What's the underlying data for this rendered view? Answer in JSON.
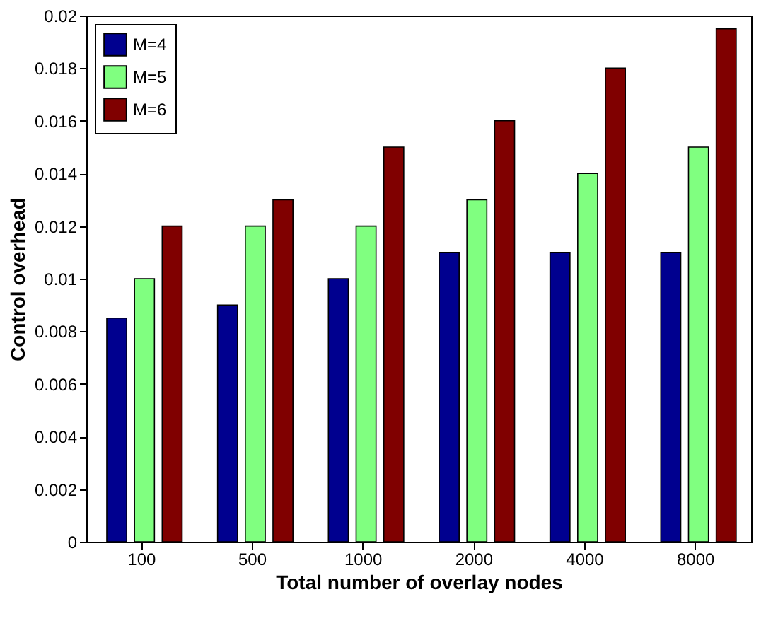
{
  "chart_data": {
    "type": "bar",
    "xlabel": "Total number of overlay nodes",
    "ylabel": "Control overhead",
    "categories": [
      "100",
      "500",
      "1000",
      "2000",
      "4000",
      "8000"
    ],
    "series": [
      {
        "name": "M=4",
        "color": "#00008f",
        "values": [
          0.0085,
          0.009,
          0.01,
          0.011,
          0.011,
          0.011
        ]
      },
      {
        "name": "M=5",
        "color": "#80ff80",
        "values": [
          0.01,
          0.012,
          0.012,
          0.013,
          0.014,
          0.015
        ]
      },
      {
        "name": "M=6",
        "color": "#800000",
        "values": [
          0.012,
          0.013,
          0.015,
          0.016,
          0.018,
          0.0195
        ]
      }
    ],
    "ylim": [
      0,
      0.02
    ],
    "yticks": [
      0,
      0.002,
      0.004,
      0.006,
      0.008,
      0.01,
      0.012,
      0.014,
      0.016,
      0.018,
      0.02
    ],
    "grid": false,
    "legend": "top left"
  }
}
